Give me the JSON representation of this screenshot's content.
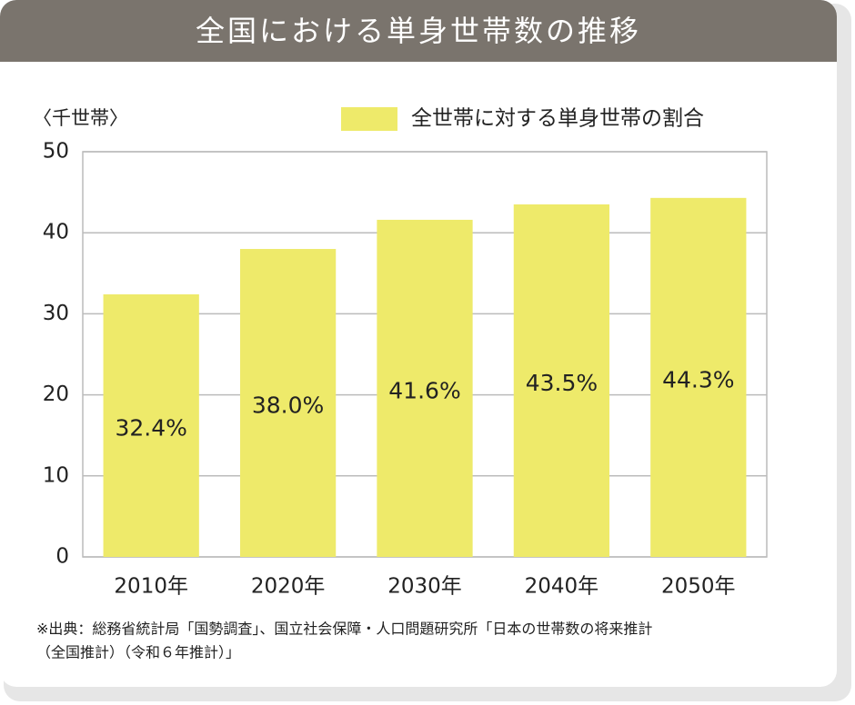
{
  "chart_data": {
    "type": "bar",
    "title": "全国における単身世帯数の推移",
    "y_label": "〈千世帯〉",
    "categories": [
      "2010年",
      "2020年",
      "2030年",
      "2040年",
      "2050年"
    ],
    "series": [
      {
        "name": "全世帯に対する単身世帯の割合",
        "color": "#eeea6a",
        "values": [
          32.4,
          38.0,
          41.6,
          43.5,
          44.3
        ],
        "value_labels": [
          "32.4%",
          "38.0%",
          "41.6%",
          "43.5%",
          "44.3%"
        ]
      }
    ],
    "ylim": [
      0,
      50
    ],
    "yticks": [
      0,
      10,
      20,
      30,
      40,
      50
    ],
    "grid": true,
    "legend": "top"
  },
  "source": [
    "※出典：総務省統計局「国勢調査」、国立社会保障・人口問題研究所「日本の世帯数の将来推計",
    "（全国推計）（令和６年推計）」"
  ]
}
